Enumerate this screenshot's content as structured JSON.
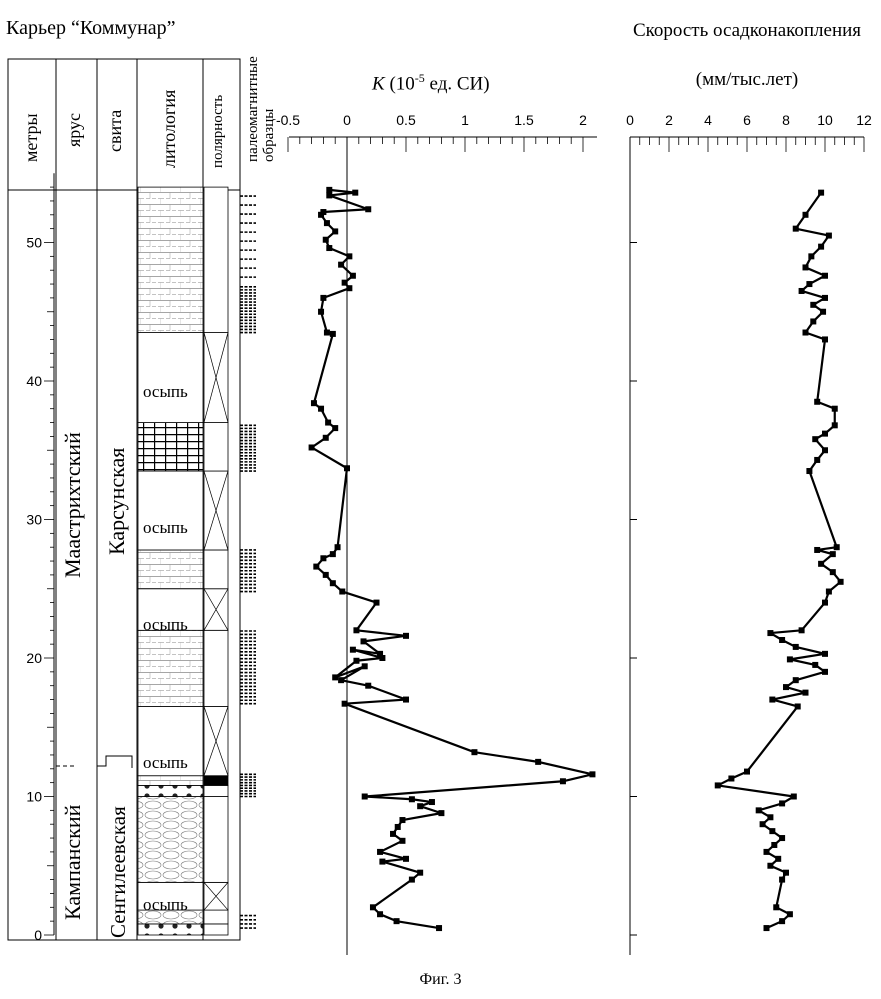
{
  "site_title": "Карьер “Коммунар”",
  "figure_caption": "Фиг. 3",
  "column_headers": {
    "meters": "метры",
    "stage": "ярус",
    "formation": "свита",
    "lithology": "литология",
    "polarity": "полярность",
    "samples": "палеомагнитные образцы"
  },
  "stages": {
    "upper": "Маастрихтский",
    "lower": "Кампанский"
  },
  "formations": {
    "upper": "Карсунская",
    "lower": "Сенгилеевская"
  },
  "scree_label": "осыпь",
  "depth_axis": {
    "ticks": [
      0,
      10,
      20,
      30,
      40,
      50
    ],
    "range": [
      0,
      55
    ]
  },
  "lithology_intervals": [
    {
      "from": 0,
      "to": 0.8,
      "pattern": "nodules"
    },
    {
      "from": 0.8,
      "to": 1.8,
      "pattern": "marl"
    },
    {
      "from": 1.8,
      "to": 3.8,
      "pattern": "scree"
    },
    {
      "from": 3.8,
      "to": 10.0,
      "pattern": "marl"
    },
    {
      "from": 10.0,
      "to": 10.8,
      "pattern": "nodules"
    },
    {
      "from": 10.8,
      "to": 11.5,
      "pattern": "chalk"
    },
    {
      "from": 11.5,
      "to": 16.5,
      "pattern": "scree"
    },
    {
      "from": 16.5,
      "to": 22.0,
      "pattern": "chalk"
    },
    {
      "from": 22.0,
      "to": 25.0,
      "pattern": "scree"
    },
    {
      "from": 25.0,
      "to": 27.8,
      "pattern": "chalk"
    },
    {
      "from": 27.8,
      "to": 33.5,
      "pattern": "scree"
    },
    {
      "from": 33.5,
      "to": 37.0,
      "pattern": "grid"
    },
    {
      "from": 37.0,
      "to": 43.5,
      "pattern": "scree"
    },
    {
      "from": 43.5,
      "to": 54.0,
      "pattern": "chalk"
    }
  ],
  "chart_data": [
    {
      "type": "line",
      "title": "K (10-5 ед. СИ)",
      "xlabel": "K (10-5 ед. СИ)",
      "ylabel": "метры",
      "xlim": [
        -0.5,
        2
      ],
      "x_ticks": [
        "-0.5",
        "0",
        "0.5",
        "1",
        "1.5",
        "2"
      ],
      "ylim": [
        0,
        55
      ],
      "grid": false,
      "series": [
        {
          "x": [
            0.78,
            0.42,
            0.28,
            0.22,
            0.55,
            0.62,
            0.3,
            0.5,
            0.28,
            0.47,
            0.39,
            0.43,
            0.47,
            0.8,
            0.62,
            0.72,
            0.55,
            0.15,
            1.83,
            2.08,
            1.62,
            1.08,
            -0.02,
            0.5,
            0.18,
            -0.05,
            0.15,
            -0.1,
            0.08,
            0.3,
            0.05,
            0.28,
            0.14,
            0.5,
            0.08,
            0.25,
            -0.04,
            -0.12,
            -0.18,
            -0.26,
            -0.2,
            -0.12,
            -0.08,
            0.0,
            -0.3,
            -0.18,
            -0.1,
            -0.16,
            -0.22,
            -0.28,
            -0.12,
            -0.17,
            -0.22,
            -0.2,
            0.02,
            -0.02,
            0.05,
            -0.05,
            0.02,
            -0.15,
            -0.18,
            -0.1,
            -0.17,
            -0.22,
            -0.2,
            0.18,
            -0.15,
            0.07,
            -0.15
          ],
          "y": [
            0.5,
            1.0,
            1.5,
            2.0,
            4.0,
            4.5,
            5.3,
            5.5,
            6.0,
            6.8,
            7.3,
            7.8,
            8.3,
            8.8,
            9.3,
            9.6,
            9.8,
            10.0,
            11.1,
            11.6,
            12.5,
            13.2,
            16.7,
            17.0,
            18.0,
            18.4,
            19.4,
            18.6,
            19.8,
            20.0,
            20.6,
            20.3,
            21.2,
            21.6,
            22.0,
            24.0,
            24.8,
            25.4,
            26.0,
            26.6,
            27.2,
            27.5,
            28.0,
            33.7,
            35.2,
            35.9,
            36.6,
            37.0,
            38.0,
            38.4,
            43.4,
            43.5,
            45.0,
            46.0,
            46.7,
            47.1,
            47.6,
            48.4,
            49.0,
            49.6,
            50.2,
            50.8,
            51.4,
            52.0,
            52.2,
            52.4,
            53.4,
            53.6,
            53.8
          ]
        }
      ]
    },
    {
      "type": "line",
      "title": "Скорость осадконакопления",
      "xlabel": "(мм/тыс.лет)",
      "ylabel": "метры",
      "xlim": [
        0,
        12
      ],
      "x_ticks": [
        "0",
        "2",
        "4",
        "6",
        "8",
        "10",
        "12"
      ],
      "ylim": [
        0,
        55
      ],
      "grid": false,
      "series": [
        {
          "x": [
            7.0,
            7.8,
            8.2,
            7.5,
            7.8,
            8.0,
            7.2,
            7.6,
            7.0,
            7.4,
            7.8,
            7.3,
            6.8,
            7.2,
            6.6,
            7.8,
            8.4,
            4.5,
            5.2,
            6.0,
            8.6,
            7.3,
            9.0,
            8.0,
            8.5,
            10.0,
            9.5,
            8.2,
            10.0,
            8.5,
            7.8,
            7.2,
            8.8,
            10.0,
            10.2,
            10.8,
            10.4,
            9.8,
            10.4,
            9.6,
            10.6,
            9.2,
            9.6,
            10.0,
            9.5,
            10.0,
            10.5,
            10.5,
            9.6,
            10.0,
            9.0,
            9.4,
            9.9,
            9.4,
            10.0,
            8.8,
            9.2,
            10.0,
            9.0,
            9.3,
            9.8,
            10.2,
            8.5,
            9.0,
            9.8
          ],
          "y": [
            0.5,
            1.0,
            1.5,
            2.0,
            4.0,
            4.5,
            5.0,
            5.5,
            6.0,
            6.5,
            7.0,
            7.5,
            8.0,
            8.5,
            9.0,
            9.5,
            10.0,
            10.8,
            11.3,
            11.8,
            16.5,
            17.0,
            17.5,
            17.9,
            18.4,
            19.0,
            19.5,
            19.9,
            20.3,
            20.8,
            21.3,
            21.8,
            22.0,
            24.0,
            24.8,
            25.5,
            26.2,
            26.8,
            27.5,
            27.8,
            28.0,
            33.5,
            34.3,
            35.0,
            35.8,
            36.2,
            36.8,
            38.0,
            38.5,
            43.0,
            43.5,
            44.3,
            45.0,
            45.5,
            46.0,
            46.5,
            47.0,
            47.6,
            48.2,
            49.0,
            49.7,
            50.5,
            51.0,
            52.0,
            53.6
          ]
        }
      ]
    }
  ]
}
